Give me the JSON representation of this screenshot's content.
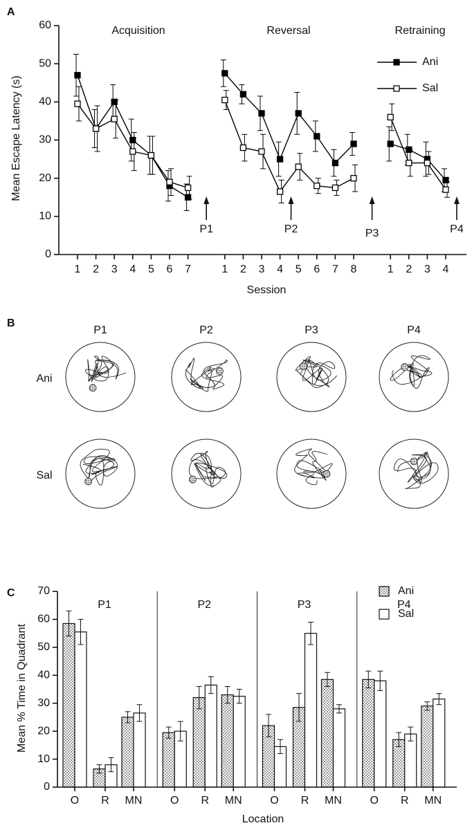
{
  "chart_data": [
    {
      "type": "line",
      "panel": "A",
      "ylabel": "Mean Escape Latency (s)",
      "xlabel": "Session",
      "sections": [
        "Acquisition",
        "Reversal",
        "Retraining"
      ],
      "probes": [
        "P1",
        "P2",
        "P3",
        "P4"
      ],
      "categories": [
        "1",
        "2",
        "3",
        "4",
        "5",
        "6",
        "7",
        null,
        "1",
        "2",
        "3",
        "4",
        "5",
        "6",
        "7",
        "8",
        null,
        "1",
        "2",
        "3",
        "4"
      ],
      "ylim": [
        0,
        60
      ],
      "yticks": [
        0,
        10,
        20,
        30,
        40,
        50,
        60
      ],
      "legend": "top-right",
      "series": [
        {
          "name": "Ani",
          "color": "#000",
          "fill": "#000",
          "values": [
            47,
            33,
            40,
            30,
            26,
            18,
            15,
            null,
            47.5,
            42,
            37,
            25,
            37,
            31,
            24,
            29,
            null,
            29,
            27.5,
            25,
            19.5
          ],
          "errors": [
            5.5,
            5,
            4.5,
            5.5,
            5,
            4,
            3.5,
            null,
            3.5,
            2.5,
            4.5,
            4.5,
            5.5,
            4,
            3.5,
            3,
            null,
            4.5,
            4,
            4.5,
            3
          ]
        },
        {
          "name": "Sal",
          "color": "#000",
          "fill": "#fff",
          "values": [
            39.5,
            33,
            35.5,
            27,
            26,
            19,
            17.5,
            null,
            40.5,
            28,
            27,
            16.5,
            23,
            18,
            17.5,
            20,
            null,
            36,
            24,
            24,
            17
          ],
          "errors": [
            4.5,
            6,
            5,
            5,
            5,
            3.5,
            3,
            null,
            2.5,
            3.5,
            4.5,
            3,
            3.5,
            2,
            2,
            3.5,
            null,
            3.5,
            3.5,
            3,
            2
          ]
        }
      ]
    },
    {
      "type": "bar",
      "panel": "C",
      "ylabel": "Mean % Time in Quadrant",
      "xlabel": "Location",
      "groups": [
        "P1",
        "P2",
        "P3",
        "P4"
      ],
      "categories": [
        "O",
        "R",
        "MN",
        "O",
        "R",
        "MN",
        "O",
        "R",
        "MN",
        "O",
        "R",
        "MN"
      ],
      "ylim": [
        0,
        70
      ],
      "yticks": [
        0,
        10,
        20,
        30,
        40,
        50,
        60,
        70
      ],
      "legend": "top-right",
      "series": [
        {
          "name": "Ani",
          "color": "#777",
          "pattern": "dotted",
          "values": [
            58.5,
            6.5,
            25,
            19.5,
            32,
            33,
            22,
            28.5,
            38.5,
            38.5,
            17,
            29
          ],
          "errors": [
            4.5,
            1.5,
            2,
            2,
            4,
            3,
            4,
            5,
            2.5,
            3,
            2.5,
            1.5
          ]
        },
        {
          "name": "Sal",
          "color": "#fff",
          "values": [
            55.5,
            8,
            26.5,
            20,
            36.5,
            32.5,
            14.5,
            55,
            28,
            38,
            19,
            31.5
          ],
          "errors": [
            4.5,
            2.5,
            3,
            3.5,
            3,
            2.5,
            2.5,
            4,
            1.5,
            3.5,
            2.5,
            2
          ]
        }
      ]
    }
  ],
  "trajectories": {
    "panel": "B",
    "columns": [
      "P1",
      "P2",
      "P3",
      "P4"
    ],
    "rows": [
      "Ani",
      "Sal"
    ]
  }
}
